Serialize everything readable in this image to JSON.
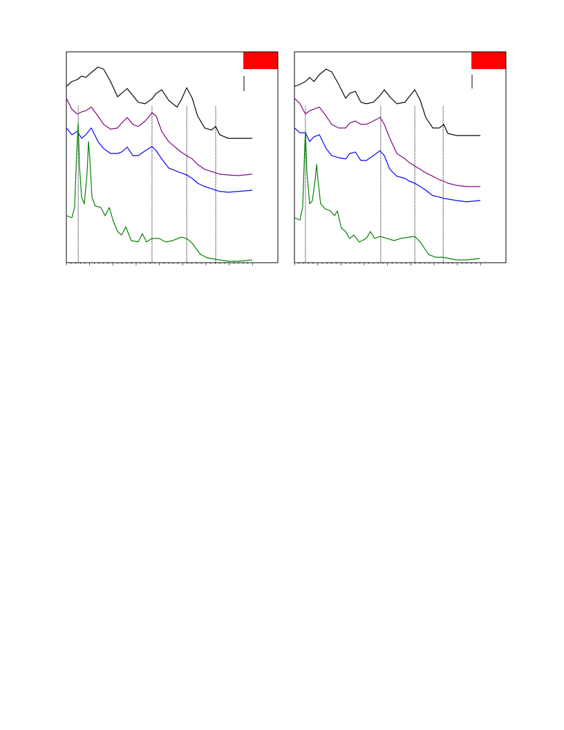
{
  "chart_data": [
    {
      "type": "line",
      "xlim": [
        0,
        100
      ],
      "ylim": [
        0,
        100
      ],
      "vlines": [
        5.6,
        40.5,
        56.9,
        70.6
      ],
      "series": [
        {
          "color": "#000000",
          "x": [
            0,
            2.6,
            5.2,
            7.2,
            9.2,
            11.8,
            15,
            17.6,
            20.9,
            24.2,
            26.1,
            28.8,
            31.4,
            34,
            37.3,
            40.5,
            42.5,
            45.1,
            48.4,
            52.3,
            54.2,
            56.9,
            59.5,
            62.1,
            65.4,
            68.6,
            70.6,
            72.5,
            76.5,
            81.4,
            87.9
          ],
          "values": [
            83.6,
            85.9,
            86.9,
            88.5,
            87.9,
            90.2,
            92.8,
            91.8,
            85.9,
            78.7,
            80.3,
            82.6,
            79.3,
            76.1,
            75.4,
            77.7,
            80.3,
            82,
            77,
            73.8,
            77,
            83,
            78,
            69.5,
            63.9,
            62.9,
            64.6,
            60.7,
            59,
            59,
            59
          ]
        },
        {
          "color": "#800080",
          "x": [
            0,
            2.6,
            5.2,
            7.2,
            9.2,
            11.8,
            15,
            17.6,
            20.9,
            24.2,
            26.1,
            28.8,
            31.4,
            34,
            37.3,
            40.5,
            42.5,
            45.1,
            48.4,
            52.3,
            54.2,
            56.9,
            59.5,
            62.1,
            65.4,
            68.6,
            70.6,
            72.5,
            76.5,
            81.4,
            87.9
          ],
          "values": [
            78,
            72.8,
            70.5,
            71.5,
            72.1,
            73.8,
            69.5,
            65.6,
            63.3,
            63.9,
            66.2,
            68.9,
            65.6,
            64.6,
            67.2,
            71.1,
            69.5,
            62.3,
            57.4,
            54.1,
            52.5,
            50.8,
            49.2,
            46.6,
            44.3,
            43.3,
            42.6,
            42,
            41.6,
            41.3,
            42
          ]
        },
        {
          "color": "#0000ff",
          "x": [
            0,
            2.6,
            5.2,
            7.2,
            9.2,
            11.8,
            15,
            17.6,
            20.9,
            24.2,
            26.1,
            28.8,
            31.4,
            34,
            37.3,
            40.5,
            42.5,
            45.1,
            48.4,
            52.3,
            54.2,
            56.9,
            59.5,
            62.1,
            65.4,
            68.6,
            70.6,
            72.5,
            76.5,
            81.4,
            87.9
          ],
          "values": [
            63.9,
            60.7,
            62.3,
            59,
            60.7,
            63.9,
            57.4,
            54.1,
            51.8,
            51.8,
            52.5,
            54.8,
            50.8,
            50.8,
            53.1,
            55.1,
            53.1,
            49.2,
            44.9,
            43.3,
            42.6,
            41.6,
            40,
            37.7,
            36.1,
            35.1,
            34.4,
            33.8,
            33.4,
            33.8,
            34.4
          ]
        },
        {
          "color": "#008000",
          "x": [
            0,
            2.6,
            3.9,
            4.9,
            5.6,
            6.2,
            7.2,
            8.5,
            9.8,
            10.5,
            11.1,
            12.1,
            13.7,
            16.3,
            18.3,
            20.3,
            22.2,
            24.2,
            26.1,
            28.1,
            30.7,
            34,
            35.9,
            37.9,
            40.5,
            43.8,
            47.1,
            50.3,
            54.2,
            56.9,
            59.5,
            63.4,
            66.7,
            70.6,
            76.5,
            81.4,
            87.9
          ],
          "values": [
            22.3,
            21.3,
            26.2,
            52.5,
            66.2,
            45.9,
            31.1,
            27.9,
            42.6,
            57.4,
            49.2,
            31.1,
            26.9,
            26.2,
            22.3,
            26.2,
            19.7,
            14.8,
            13.1,
            17,
            10.5,
            9.8,
            13.8,
            9.8,
            11.5,
            11.5,
            9.8,
            10.5,
            12.1,
            11.5,
            9.2,
            3.9,
            2.3,
            1.6,
            0.7,
            0.7,
            1.3
          ]
        }
      ]
    },
    {
      "type": "line",
      "xlim": [
        0,
        100
      ],
      "ylim": [
        0,
        100
      ],
      "vlines": [
        5.2,
        40.8,
        56.9,
        70.3
      ],
      "series": [
        {
          "color": "#000000",
          "x": [
            0,
            2.6,
            5.2,
            7.2,
            9.2,
            11.8,
            15,
            17.6,
            20.9,
            24.2,
            26.1,
            28.8,
            31.4,
            34,
            37.3,
            40.5,
            42.5,
            45.1,
            48.4,
            52.3,
            54.2,
            56.9,
            59.5,
            62.1,
            65.4,
            68.6,
            70.6,
            72.5,
            76.5,
            81.4,
            87.9
          ],
          "values": [
            83.6,
            84.6,
            85.9,
            87.9,
            85.9,
            89.2,
            91.8,
            90.5,
            84.6,
            78,
            80.3,
            81.3,
            76.1,
            75.4,
            76.1,
            79.3,
            82,
            78.7,
            75.4,
            76.1,
            78.7,
            82,
            77,
            68.9,
            63.9,
            63.9,
            65.6,
            61.3,
            60.3,
            60.3,
            60.3
          ]
        },
        {
          "color": "#800080",
          "x": [
            0,
            2.6,
            5.2,
            7.2,
            9.2,
            11.8,
            15,
            17.6,
            20.9,
            24.2,
            26.1,
            28.8,
            31.4,
            34,
            37.3,
            40.5,
            42.5,
            45.1,
            48.4,
            52.3,
            54.2,
            56.9,
            59.5,
            62.1,
            65.4,
            68.6,
            70.6,
            72.5,
            76.5,
            81.4,
            87.9
          ],
          "values": [
            78,
            75.4,
            70.5,
            72.1,
            72.8,
            73.8,
            69.5,
            65.6,
            63.9,
            63.9,
            66.2,
            67.2,
            65.6,
            65.6,
            67.2,
            68.9,
            65.6,
            59,
            51.8,
            49.2,
            47.5,
            45.9,
            44.3,
            42.6,
            41,
            39.3,
            38.7,
            37.7,
            36.7,
            36.1,
            36.1
          ]
        },
        {
          "color": "#0000ff",
          "x": [
            0,
            2.6,
            5.2,
            7.2,
            9.2,
            11.8,
            15,
            17.6,
            20.9,
            24.2,
            26.1,
            28.8,
            31.4,
            34,
            37.3,
            40.5,
            42.5,
            45.1,
            48.4,
            52.3,
            54.2,
            56.9,
            59.5,
            62.1,
            65.4,
            68.6,
            70.6,
            72.5,
            76.5,
            81.4,
            87.9
          ],
          "values": [
            63.9,
            61.6,
            61.6,
            57.4,
            59.7,
            60.7,
            54.1,
            50.8,
            49.8,
            49.2,
            51.8,
            52.5,
            48.5,
            48.5,
            50.8,
            53.1,
            50.8,
            44.3,
            41,
            40,
            38.7,
            37.7,
            36.1,
            34.4,
            31.8,
            31.1,
            30.5,
            30.2,
            29.5,
            28.9,
            29.5
          ]
        },
        {
          "color": "#008000",
          "x": [
            0,
            2.6,
            3.9,
            4.9,
            5.2,
            5.9,
            7.2,
            8.5,
            9.8,
            10.5,
            11.1,
            12.4,
            14.4,
            17,
            19,
            20.3,
            22.2,
            24.2,
            26.1,
            28.1,
            30.7,
            34,
            35.9,
            37.9,
            40.5,
            43.8,
            47.1,
            50.3,
            54.2,
            56.9,
            59.5,
            63.4,
            66.7,
            70.3,
            76.5,
            81.4,
            87.6
          ],
          "values": [
            21.3,
            20.3,
            26.2,
            55.7,
            62.3,
            42.6,
            27.9,
            29.5,
            39.3,
            46.6,
            39.3,
            27.9,
            25.6,
            24.6,
            22.3,
            24.6,
            16.4,
            14.8,
            11.5,
            13.1,
            9.8,
            11.5,
            14.8,
            11.5,
            12.5,
            11.5,
            10.5,
            11.5,
            12.1,
            12.5,
            9.8,
            3.9,
            2.6,
            2.6,
            1.3,
            1.3,
            2
          ]
        }
      ]
    }
  ]
}
